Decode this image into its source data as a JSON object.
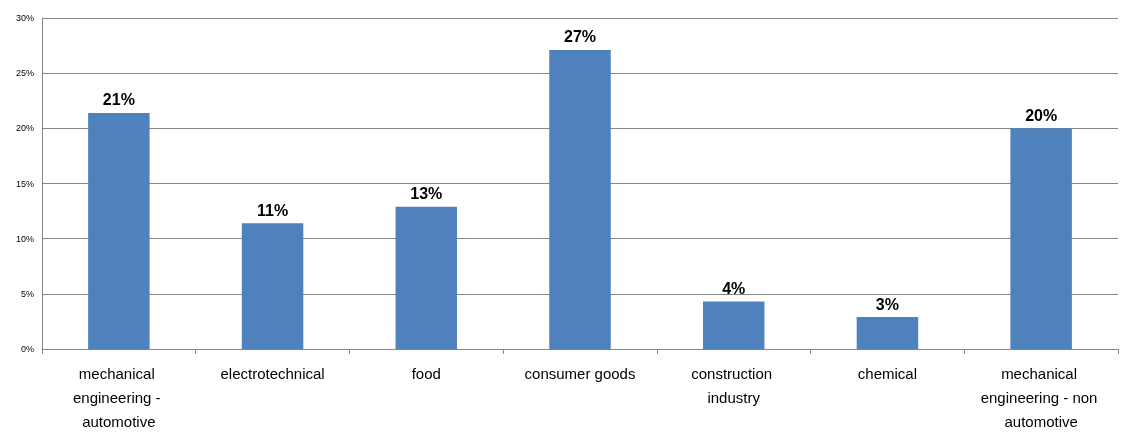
{
  "chart_data": {
    "type": "bar",
    "categories": [
      "mechanical engineering - automotive",
      "electrotechnical",
      "food",
      "consumer goods",
      "construction industry",
      "chemical",
      "mechanical engineering - non automotive"
    ],
    "values": [
      21.4,
      11.4,
      12.9,
      27.1,
      4.3,
      2.9,
      20.0
    ],
    "value_labels": [
      "21%",
      "11%",
      "13%",
      "27%",
      "4%",
      "3%",
      "20%"
    ],
    "color": "#4f81bd",
    "ylim": [
      0,
      30
    ],
    "yticks": [
      {
        "value": 0,
        "label": "0%"
      },
      {
        "value": 5,
        "label": "5%"
      },
      {
        "value": 10,
        "label": "10%"
      },
      {
        "value": 15,
        "label": "15%"
      },
      {
        "value": 20,
        "label": "20%"
      },
      {
        "value": 25,
        "label": "25%"
      },
      {
        "value": 30,
        "label": "30%"
      }
    ],
    "grid": "y"
  }
}
